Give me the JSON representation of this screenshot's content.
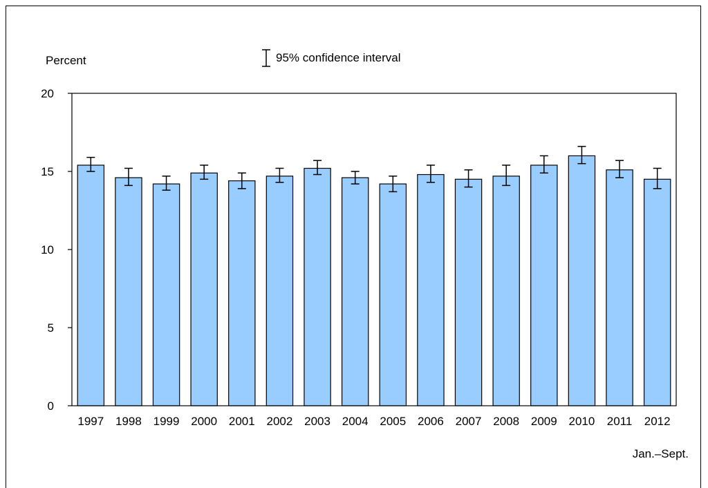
{
  "chart_data": {
    "type": "bar",
    "ylabel": "Percent",
    "legend": "95% confidence interval",
    "legend_placement": "top-center",
    "footnote": "Jan.–Sept.",
    "ylim": [
      0,
      20
    ],
    "yticks": [
      0,
      5,
      10,
      15,
      20
    ],
    "grid": false,
    "bar_color": "#99ccff",
    "categories": [
      "1997",
      "1998",
      "1999",
      "2000",
      "2001",
      "2002",
      "2003",
      "2004",
      "2005",
      "2006",
      "2007",
      "2008",
      "2009",
      "2010",
      "2011",
      "2012"
    ],
    "values": [
      15.4,
      14.6,
      14.2,
      14.9,
      14.4,
      14.7,
      15.2,
      14.6,
      14.2,
      14.8,
      14.5,
      14.7,
      15.4,
      16.0,
      15.1,
      14.5
    ],
    "ci_lower": [
      15.0,
      14.1,
      13.8,
      14.5,
      13.9,
      14.3,
      14.8,
      14.2,
      13.7,
      14.3,
      14.0,
      14.1,
      14.9,
      15.5,
      14.6,
      13.9
    ],
    "ci_upper": [
      15.9,
      15.2,
      14.7,
      15.4,
      14.9,
      15.2,
      15.7,
      15.0,
      14.7,
      15.4,
      15.1,
      15.4,
      16.0,
      16.6,
      15.7,
      15.2
    ]
  }
}
